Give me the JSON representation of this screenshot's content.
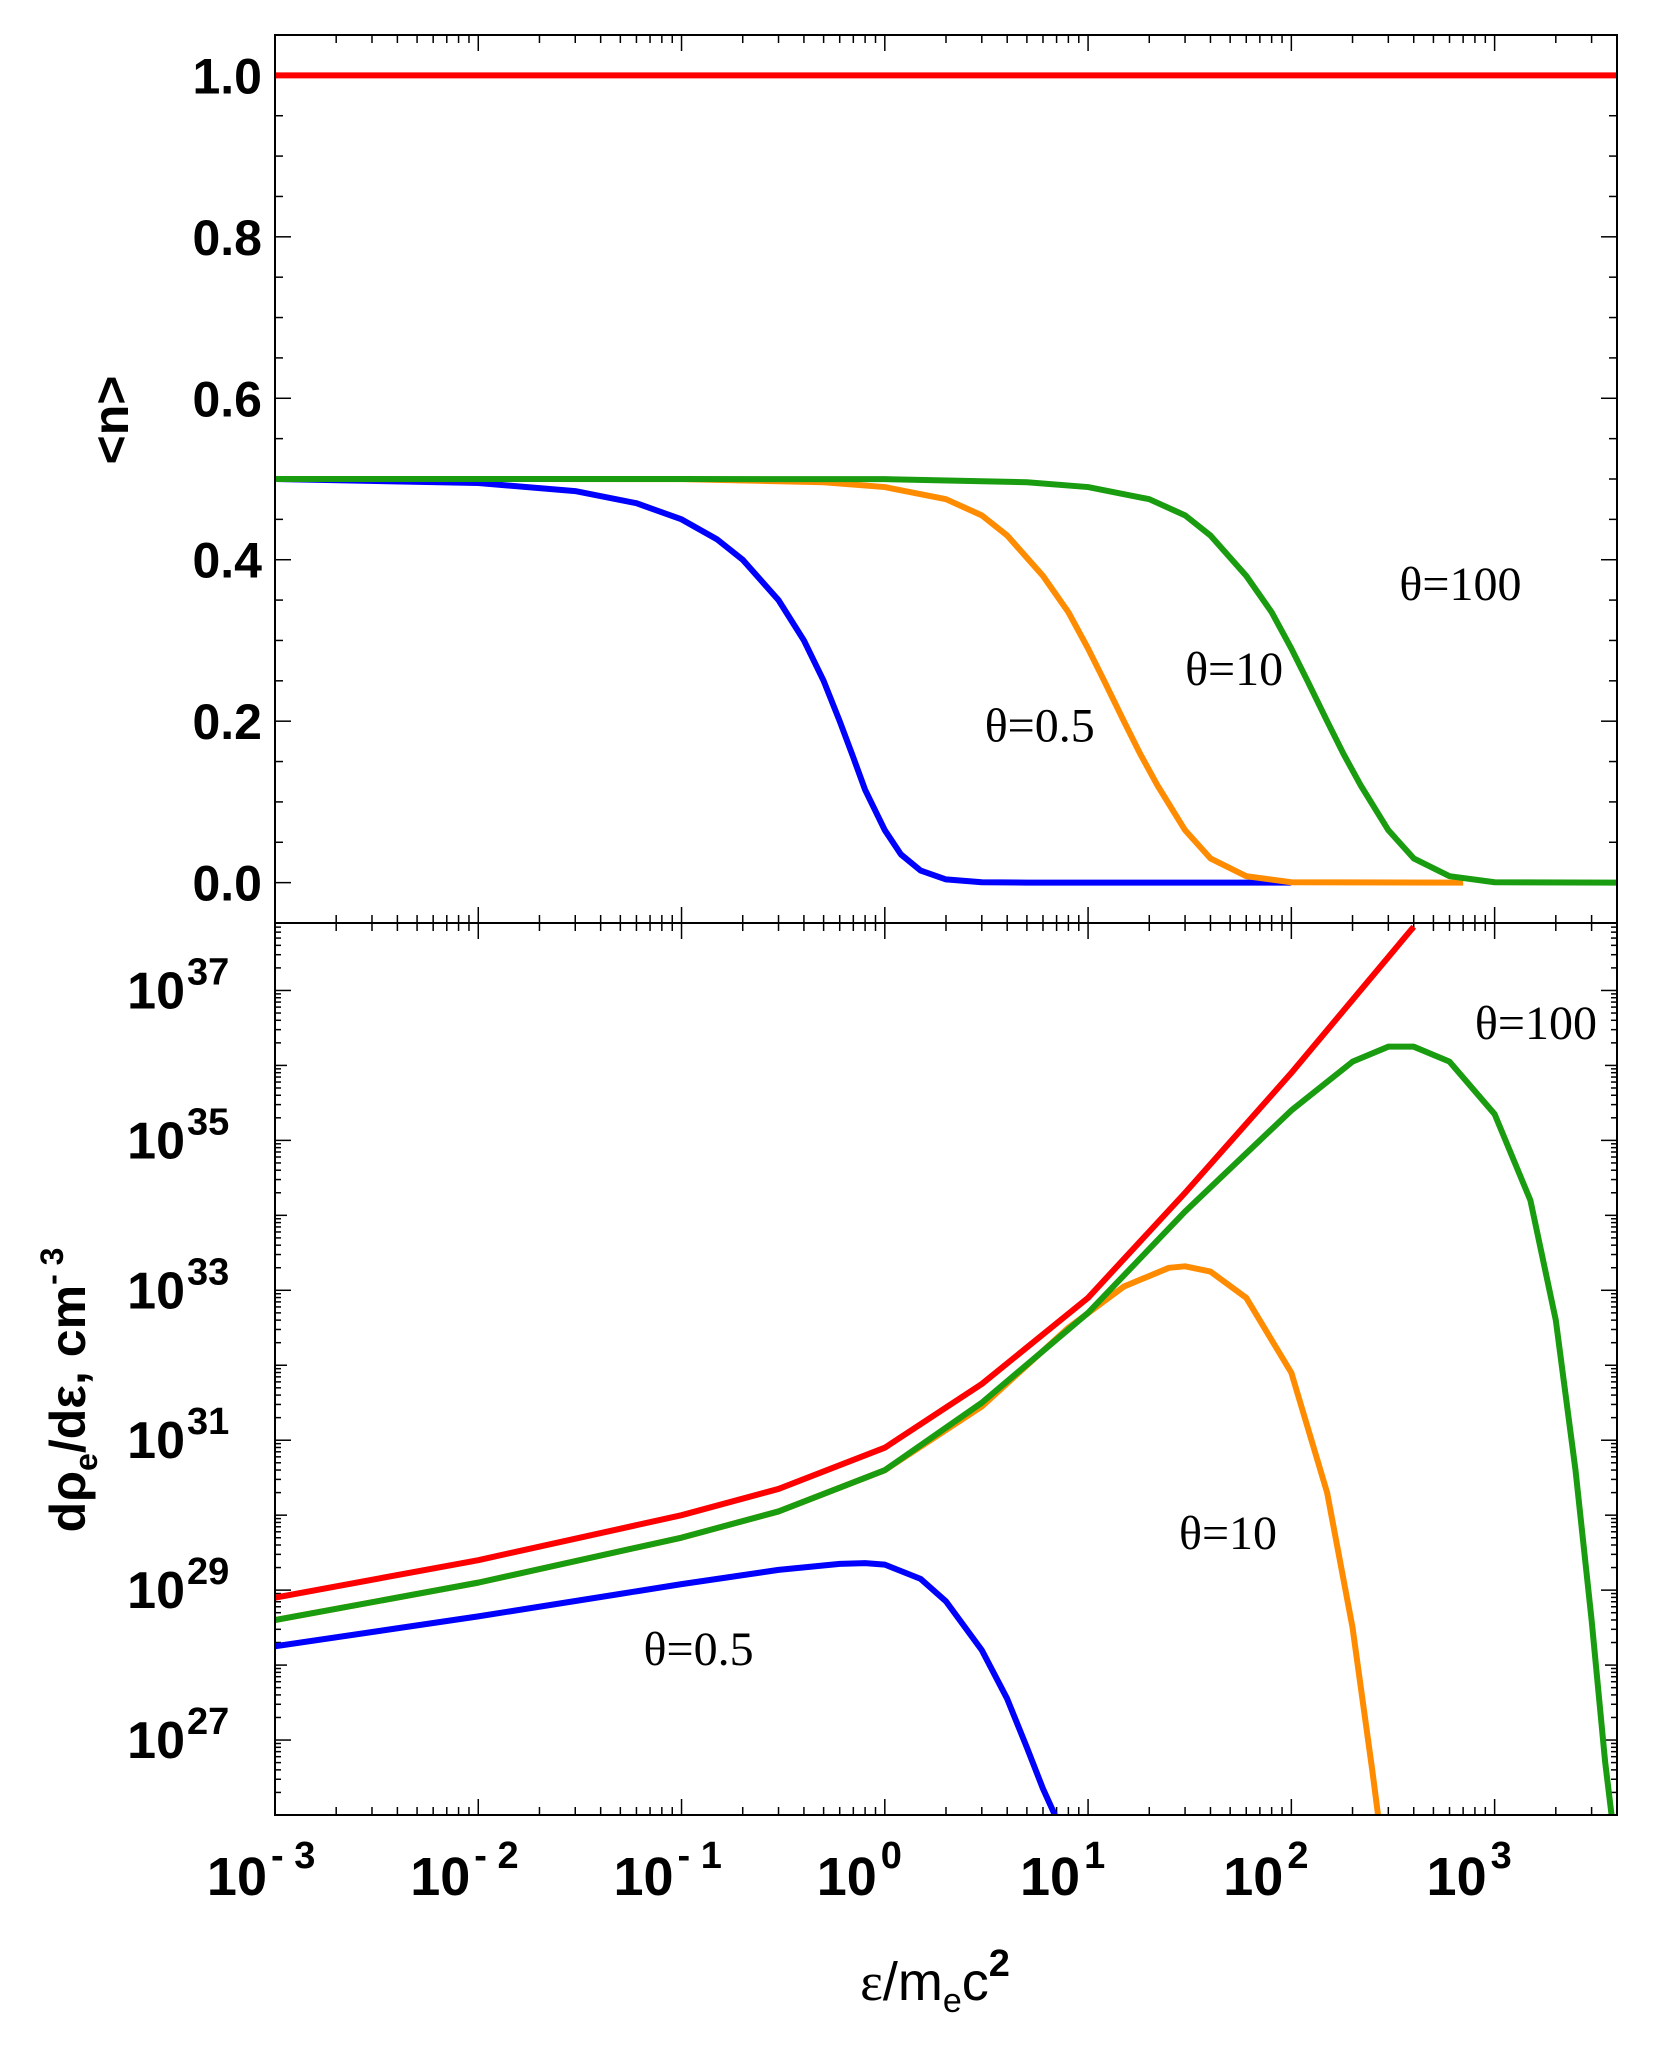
{
  "chart_data": [
    {
      "type": "line",
      "panel": "top",
      "ylabel": "<n>",
      "xscale": "log",
      "yscale": "linear",
      "xlim": [
        0.001,
        4000
      ],
      "ylim": [
        -0.05,
        1.05
      ],
      "yticks": [
        {
          "value": 0.0,
          "label": "0.0"
        },
        {
          "value": 0.2,
          "label": "0.2"
        },
        {
          "value": 0.4,
          "label": "0.4"
        },
        {
          "value": 0.6,
          "label": "0.6"
        },
        {
          "value": 0.8,
          "label": "0.8"
        },
        {
          "value": 1.0,
          "label": "1.0"
        }
      ],
      "series": [
        {
          "name": "red",
          "color": "#ff0000",
          "x": [
            0.001,
            4000
          ],
          "y": [
            1.0,
            1.0
          ]
        },
        {
          "name": "θ=0.5",
          "color": "#0000ff",
          "x": [
            0.001,
            0.01,
            0.03,
            0.06,
            0.1,
            0.15,
            0.2,
            0.3,
            0.4,
            0.5,
            0.6,
            0.7,
            0.8,
            1.0,
            1.2,
            1.5,
            2.0,
            3.0,
            5.0,
            10,
            100
          ],
          "y": [
            0.5,
            0.495,
            0.485,
            0.47,
            0.45,
            0.425,
            0.4,
            0.35,
            0.3,
            0.25,
            0.2,
            0.155,
            0.115,
            0.065,
            0.035,
            0.015,
            0.004,
            0.0005,
            0.0,
            0.0,
            0.0
          ]
        },
        {
          "name": "θ=10",
          "color": "#ff8c00",
          "x": [
            0.001,
            0.01,
            0.1,
            0.5,
            1,
            2,
            3,
            4,
            6,
            8,
            10,
            12,
            15,
            18,
            22,
            30,
            40,
            60,
            100,
            700
          ],
          "y": [
            0.5,
            0.5,
            0.4998,
            0.496,
            0.49,
            0.475,
            0.455,
            0.43,
            0.38,
            0.335,
            0.29,
            0.25,
            0.2,
            0.16,
            0.12,
            0.065,
            0.03,
            0.008,
            0.0005,
            0.0
          ]
        },
        {
          "name": "θ=100",
          "color": "#1a9c10",
          "x": [
            0.001,
            0.1,
            1,
            5,
            10,
            20,
            30,
            40,
            60,
            80,
            100,
            120,
            150,
            180,
            220,
            300,
            400,
            600,
            1000,
            4000
          ],
          "y": [
            0.5,
            0.5,
            0.4998,
            0.496,
            0.49,
            0.475,
            0.455,
            0.43,
            0.38,
            0.335,
            0.29,
            0.25,
            0.2,
            0.16,
            0.12,
            0.065,
            0.03,
            0.008,
            0.0005,
            0.0
          ]
        }
      ],
      "annotations": [
        {
          "text": "θ=0.5",
          "x": 3.1,
          "y": 0.175
        },
        {
          "text": "θ=10",
          "x": 30,
          "y": 0.245
        },
        {
          "text": "θ=100",
          "x": 340,
          "y": 0.35
        }
      ]
    },
    {
      "type": "line",
      "panel": "bottom",
      "xlabel": "ε/mec²",
      "ylabel": "dρe/dε, cm⁻³",
      "xscale": "log",
      "yscale": "log",
      "xlim": [
        0.001,
        4000
      ],
      "ylim_log10": [
        26.0,
        37.9
      ],
      "xticks": [
        {
          "value": 0.001,
          "base": "10",
          "exp": "- 3"
        },
        {
          "value": 0.01,
          "base": "10",
          "exp": "- 2"
        },
        {
          "value": 0.1,
          "base": "10",
          "exp": "- 1"
        },
        {
          "value": 1,
          "base": "10",
          "exp": "0"
        },
        {
          "value": 10,
          "base": "10",
          "exp": "1"
        },
        {
          "value": 100,
          "base": "10",
          "exp": "2"
        },
        {
          "value": 1000,
          "base": "10",
          "exp": "3"
        }
      ],
      "yticks": [
        {
          "log10": 27,
          "base": "10",
          "exp": "27"
        },
        {
          "log10": 29,
          "base": "10",
          "exp": "29"
        },
        {
          "log10": 31,
          "base": "10",
          "exp": "31"
        },
        {
          "log10": 33,
          "base": "10",
          "exp": "33"
        },
        {
          "log10": 35,
          "base": "10",
          "exp": "35"
        },
        {
          "log10": 37,
          "base": "10",
          "exp": "37"
        }
      ],
      "series": [
        {
          "name": "red",
          "color": "#ff0000",
          "x": [
            0.001,
            0.01,
            0.1,
            0.3,
            1,
            3,
            10,
            30,
            100,
            400
          ],
          "log10y": [
            28.9,
            29.4,
            30.0,
            30.35,
            30.9,
            31.75,
            32.9,
            34.3,
            35.9,
            37.85
          ]
        },
        {
          "name": "θ=0.5",
          "color": "#0000ff",
          "x": [
            0.001,
            0.01,
            0.05,
            0.1,
            0.3,
            0.6,
            0.8,
            1.0,
            1.5,
            2.0,
            3.0,
            4.0,
            5.0,
            6.0,
            7.0
          ],
          "log10y": [
            28.25,
            28.65,
            28.95,
            29.08,
            29.27,
            29.35,
            29.36,
            29.34,
            29.15,
            28.85,
            28.2,
            27.55,
            26.9,
            26.35,
            25.95
          ]
        },
        {
          "name": "θ=10",
          "color": "#ff8c00",
          "x": [
            0.001,
            0.01,
            0.1,
            0.3,
            1,
            3,
            8,
            15,
            25,
            30,
            40,
            60,
            100,
            150,
            200,
            250,
            270
          ],
          "log10y": [
            28.6,
            29.1,
            29.7,
            30.05,
            30.6,
            31.45,
            32.5,
            33.05,
            33.3,
            33.32,
            33.25,
            32.9,
            31.9,
            30.3,
            28.5,
            26.6,
            25.9
          ]
        },
        {
          "name": "θ=100",
          "color": "#1a9c10",
          "x": [
            0.001,
            0.01,
            0.1,
            0.3,
            1,
            3,
            10,
            30,
            100,
            200,
            300,
            400,
            600,
            1000,
            1500,
            2000,
            2500,
            3000,
            3500,
            3800
          ],
          "log10y": [
            28.6,
            29.1,
            29.7,
            30.05,
            30.6,
            31.5,
            32.7,
            34.05,
            35.4,
            36.05,
            36.25,
            36.25,
            36.05,
            35.35,
            34.2,
            32.6,
            30.6,
            28.6,
            26.7,
            25.9
          ]
        }
      ],
      "annotations": [
        {
          "text": "θ=0.5",
          "x": 0.065,
          "log10y": 28.0
        },
        {
          "text": "θ=10",
          "x": 28,
          "log10y": 29.55
        },
        {
          "text": "θ=100",
          "x": 800,
          "log10y": 36.35
        }
      ]
    }
  ]
}
